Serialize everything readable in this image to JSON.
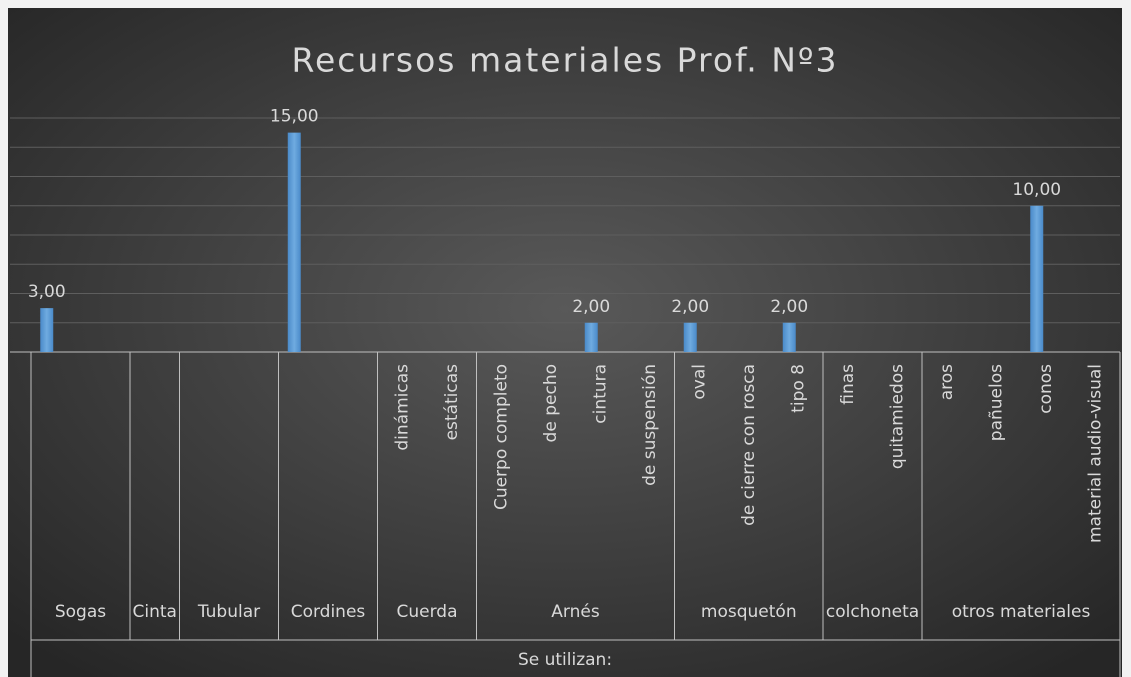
{
  "chart_data": {
    "type": "bar",
    "title": "Recursos materiales Prof. Nº3",
    "x_label": "Se utilizan:",
    "color": "#5b9bd5",
    "ylim": [
      0,
      16
    ],
    "yticks": [
      0,
      2,
      4,
      6,
      8,
      10,
      12,
      14,
      16
    ],
    "grid": true,
    "groups": [
      {
        "name": "Sogas",
        "categories": [
          null,
          null
        ],
        "values": [
          3,
          null
        ],
        "value_labels": [
          "3,00",
          null
        ]
      },
      {
        "name": "Cinta",
        "categories": [
          null
        ],
        "values": [
          null
        ],
        "value_labels": [
          null
        ]
      },
      {
        "name": "Tubular",
        "categories": [
          null,
          null
        ],
        "values": [
          null,
          null
        ],
        "value_labels": [
          null,
          null
        ]
      },
      {
        "name": "Cordines",
        "categories": [
          null,
          null
        ],
        "values": [
          15,
          null
        ],
        "value_labels": [
          "15,00",
          null
        ]
      },
      {
        "name": "Cuerda",
        "categories": [
          "dinámicas",
          "estáticas"
        ],
        "values": [
          null,
          null
        ],
        "value_labels": [
          null,
          null
        ]
      },
      {
        "name": "Arnés",
        "categories": [
          "Cuerpo completo",
          "de pecho",
          "cintura",
          "de suspensión"
        ],
        "values": [
          null,
          null,
          2,
          null
        ],
        "value_labels": [
          null,
          null,
          "2,00",
          null
        ]
      },
      {
        "name": "mosquetón",
        "categories": [
          "oval",
          "de cierre con rosca",
          "tipo 8"
        ],
        "values": [
          2,
          null,
          2
        ],
        "value_labels": [
          "2,00",
          null,
          "2,00"
        ]
      },
      {
        "name": "colchoneta",
        "categories": [
          "finas",
          "quitamiedos"
        ],
        "values": [
          null,
          null
        ],
        "value_labels": [
          null,
          null
        ]
      },
      {
        "name": "otros materiales",
        "categories": [
          "aros",
          "pañuelos",
          "conos",
          "material audio-visual"
        ],
        "values": [
          null,
          null,
          10,
          null
        ],
        "value_labels": [
          null,
          null,
          "10,00",
          null
        ]
      }
    ]
  }
}
